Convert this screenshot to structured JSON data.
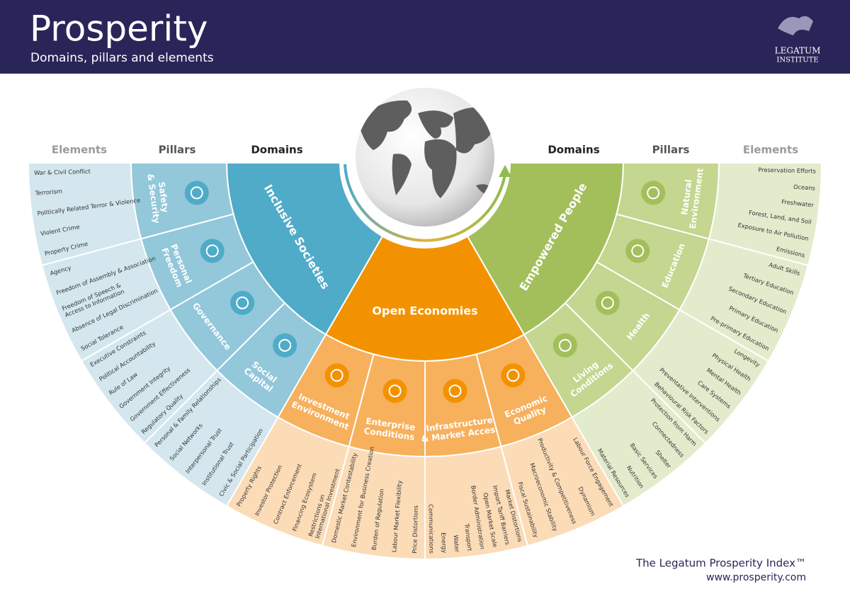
{
  "header": {
    "title": "Prosperity",
    "subtitle": "Domains, pillars and elements",
    "logo": [
      "LEGATUM",
      "INSTITUTE"
    ]
  },
  "column_headers": {
    "left": [
      "Elements",
      "Pillars",
      "Domains"
    ],
    "right": [
      "Domains",
      "Pillars",
      "Elements"
    ]
  },
  "domains": [
    {
      "name": "Inclusive Societies",
      "colors": {
        "domain": "#4fabc7",
        "pillar": "#93c7da",
        "element": "#d4e7ee"
      },
      "pillars": [
        {
          "name": [
            "Safety",
            "& Security"
          ],
          "elements": [
            "War & Civil Conflict",
            "Terrorism",
            "Politically Related Terror & Violence",
            "Violent Crime",
            "Property Crime"
          ]
        },
        {
          "name": [
            "Personal",
            "Freedom"
          ],
          "elements": [
            "Agency",
            "Freedom of Assembly & Association",
            [
              "Freedom of Speech &",
              "Access to Information"
            ],
            "Absence of Legal Discrimination",
            "Social Tolerance"
          ]
        },
        {
          "name": [
            "Governance"
          ],
          "elements": [
            "Executive Constraints",
            "Political Accountability",
            "Rule of Law",
            "Government Integrity",
            "Government Effectiveness",
            "Regulatory Quality"
          ]
        },
        {
          "name": [
            "Social",
            "Capital"
          ],
          "elements": [
            "Personal & Family Relationships",
            "Social Networks",
            "Interpersonal Trust",
            "Institutional Trust",
            "Civic & Social Participation"
          ]
        }
      ]
    },
    {
      "name": "Open Economies",
      "colors": {
        "domain": "#f39200",
        "pillar": "#f7b05c",
        "element": "#fbdcb7"
      },
      "pillars": [
        {
          "name": [
            "Investment",
            "Environment"
          ],
          "elements": [
            "Property Rights",
            "Investor Protection",
            "Contract Enforcement",
            "Financing Ecosystem",
            [
              "Restrictions on",
              "International Investment"
            ]
          ]
        },
        {
          "name": [
            "Enterprise",
            "Conditions"
          ],
          "elements": [
            "Domestic Market Contestability",
            "Environment for Business Creation",
            "Burden of Regulation",
            "Labour Market Flexibility",
            "Price Distortions"
          ]
        },
        {
          "name": [
            "Infrastructure",
            "& Market Access"
          ],
          "elements": [
            "Communications",
            "Energy",
            "Water",
            "Transport",
            "Border Administration",
            "Open Market Scale",
            "Import Tariff Barriers",
            "Market Distortions"
          ]
        },
        {
          "name": [
            "Economic",
            "Quality"
          ],
          "elements": [
            "Fiscal Sustainability",
            "Macroeconomic Stability",
            "Productivity & Competitiveness",
            "Dynamism",
            "Labour Force Engagement"
          ]
        }
      ]
    },
    {
      "name": "Empowered People",
      "colors": {
        "domain": "#a3bf5c",
        "pillar": "#c4d68f",
        "element": "#e3ebcd"
      },
      "pillars": [
        {
          "name": [
            "Living",
            "Conditions"
          ],
          "elements": [
            "Material Resources",
            "Nutrition",
            "Basic Services",
            "Shelter",
            "Connectedness",
            "Protection from Harm"
          ]
        },
        {
          "name": [
            "Health"
          ],
          "elements": [
            "Behavioural Risk Factors",
            "Preventative Interventions",
            "Care Systems",
            "Mental Health",
            "Physical Health",
            "Longevity"
          ]
        },
        {
          "name": [
            "Education"
          ],
          "elements": [
            "Pre-primary Education",
            "Primary Education",
            "Secondary Education",
            "Tertiary Education",
            "Adult Skills"
          ]
        },
        {
          "name": [
            "Natural",
            "Environment"
          ],
          "elements": [
            "Emissions",
            "Exposure to Air Pollution",
            "Forest, Land, and Soil",
            "Freshwater",
            "Oceans",
            "Preservation Efforts"
          ]
        }
      ]
    }
  ],
  "footer": {
    "index": "The Legatum Prosperity Index™",
    "url": "www.prosperity.com"
  }
}
